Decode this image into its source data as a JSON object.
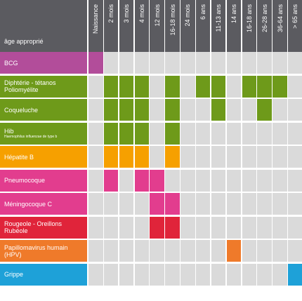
{
  "header": {
    "corner_label": "âge approprié",
    "columns": [
      "Naissance",
      "2 mois",
      "3 mois",
      "4 mois",
      "12 mois",
      "16-18 mois",
      "24 mois",
      "6 ans",
      "11-13 ans",
      "14 ans",
      "16-18 ans",
      "26-28 ans",
      "36-64 ans",
      "> 65 ans"
    ]
  },
  "colors": {
    "header_bg": "#5b5b60",
    "empty_cell": "#dadada",
    "purple": "#b24d9a",
    "green": "#6e9a1a",
    "orange": "#f6a000",
    "pink": "#e23d8e",
    "red": "#e0243a",
    "dark_orange": "#ef7a2a",
    "blue": "#1ea1d8"
  },
  "rows": [
    {
      "id": "bcg",
      "lines": [
        "BCG"
      ],
      "sub": "",
      "color": "#b24d9a",
      "cells": [
        0
      ]
    },
    {
      "id": "diphterie",
      "lines": [
        "Diphtérie - tétanos",
        "Poliomyélite"
      ],
      "sub": "",
      "color": "#6e9a1a",
      "cells": [
        1,
        2,
        3,
        5,
        7,
        8,
        10,
        11,
        12
      ]
    },
    {
      "id": "coqueluche",
      "lines": [
        "Coqueluche"
      ],
      "sub": "",
      "color": "#6e9a1a",
      "cells": [
        1,
        2,
        3,
        5,
        8,
        11
      ]
    },
    {
      "id": "hib",
      "lines": [
        "Hib"
      ],
      "sub": "Haemophilus influenzae de type b",
      "color": "#6e9a1a",
      "cells": [
        1,
        2,
        3,
        5
      ]
    },
    {
      "id": "hepatite-b",
      "lines": [
        "Hépatite B"
      ],
      "sub": "",
      "color": "#f6a000",
      "cells": [
        1,
        2,
        3,
        5
      ]
    },
    {
      "id": "pneumocoque",
      "lines": [
        "Pneumocoque"
      ],
      "sub": "",
      "color": "#e23d8e",
      "cells": [
        1,
        3,
        4
      ]
    },
    {
      "id": "meningocoque-c",
      "lines": [
        "Méningocoque C"
      ],
      "sub": "",
      "color": "#e23d8e",
      "cells": [
        4,
        5
      ]
    },
    {
      "id": "rougeole",
      "lines": [
        "Rougeole - Oreillons",
        "Rubéole"
      ],
      "sub": "",
      "color": "#e0243a",
      "cells": [
        4,
        5
      ]
    },
    {
      "id": "papillomavirus",
      "lines": [
        "Papillomavirus humain",
        "(HPV)"
      ],
      "sub": "",
      "color": "#ef7a2a",
      "cells": [
        9
      ]
    },
    {
      "id": "grippe",
      "lines": [
        "Grippe"
      ],
      "sub": "",
      "color": "#1ea1d8",
      "cells": [
        13
      ]
    }
  ]
}
